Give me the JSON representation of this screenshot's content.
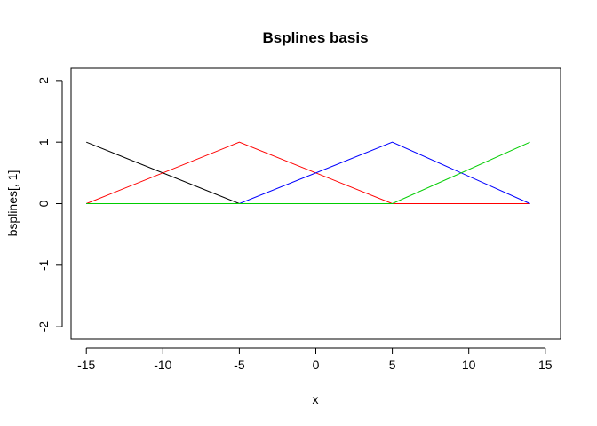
{
  "chart_data": {
    "type": "line",
    "title": "Bsplines basis",
    "xlabel": "x",
    "ylabel": "bsplines[, 1]",
    "xlim": [
      -16,
      16
    ],
    "ylim": [
      -2.2,
      2.2
    ],
    "xticks": [
      -15,
      -10,
      -5,
      0,
      5,
      10,
      15
    ],
    "yticks": [
      -2,
      -1,
      0,
      1,
      2
    ],
    "xtick_labels": [
      "-15",
      "-10",
      "-5",
      "0",
      "5",
      "10",
      "15"
    ],
    "ytick_labels": [
      "-2",
      "-1",
      "0",
      "1",
      "2"
    ],
    "grid": false,
    "series": [
      {
        "color": "#000000",
        "x": [
          -15,
          -5,
          14
        ],
        "y": [
          1,
          0,
          0
        ]
      },
      {
        "color": "#ff0000",
        "x": [
          -15,
          -5,
          5,
          14
        ],
        "y": [
          0,
          1,
          0,
          0
        ]
      },
      {
        "color": "#0000ff",
        "x": [
          -15,
          -5,
          5,
          14
        ],
        "y": [
          0,
          0,
          1,
          0
        ]
      },
      {
        "color": "#00cd00",
        "x": [
          -15,
          5,
          14
        ],
        "y": [
          0,
          0,
          1
        ]
      }
    ]
  }
}
